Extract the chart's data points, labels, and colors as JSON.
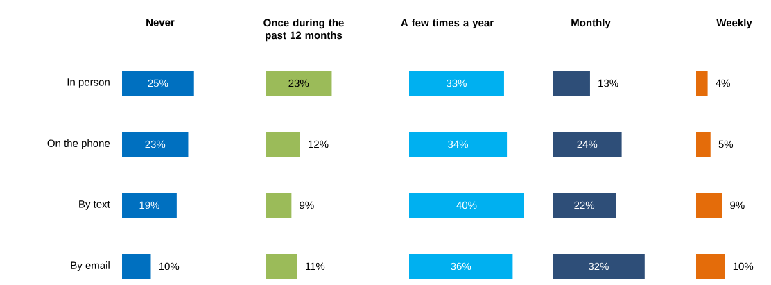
{
  "chart_data": [
    {
      "type": "bar",
      "orientation": "horizontal",
      "title": "Never",
      "categories": [
        "In person",
        "On the phone",
        "By text",
        "By email"
      ],
      "values": [
        25,
        23,
        19,
        10
      ],
      "value_labels": [
        "25%",
        "23%",
        "19%",
        "10%"
      ],
      "color": "#0070c0",
      "tick_labels": "y"
    },
    {
      "type": "bar",
      "orientation": "horizontal",
      "title": "Once during the past 12 months",
      "categories": [
        null,
        null,
        null,
        null
      ],
      "values": [
        23,
        12,
        9,
        11
      ],
      "value_labels": [
        "23%",
        "12%",
        "9%",
        "11%"
      ],
      "color": "#9bbb59",
      "tick_labels": false
    },
    {
      "type": "bar",
      "orientation": "horizontal",
      "title": "A few times a year",
      "categories": [
        null,
        null,
        null,
        null
      ],
      "values": [
        33,
        34,
        40,
        36
      ],
      "value_labels": [
        "33%",
        "34%",
        "40%",
        "36%"
      ],
      "color": "#00b0f0",
      "tick_labels": false
    },
    {
      "type": "bar",
      "orientation": "horizontal",
      "title": "Monthly",
      "categories": [
        null,
        null,
        null,
        null
      ],
      "values": [
        13,
        24,
        22,
        32
      ],
      "value_labels": [
        "13%",
        "24%",
        "22%",
        "32%"
      ],
      "color": "#2e4e78",
      "tick_labels": false
    },
    {
      "type": "bar",
      "orientation": "horizontal",
      "title": "Weekly",
      "categories": [
        null,
        null,
        null,
        null
      ],
      "values": [
        4,
        5,
        9,
        10
      ],
      "value_labels": [
        "4%",
        "5%",
        "9%",
        "10%"
      ],
      "color": "#e46c0a",
      "tick_labels": false
    }
  ]
}
